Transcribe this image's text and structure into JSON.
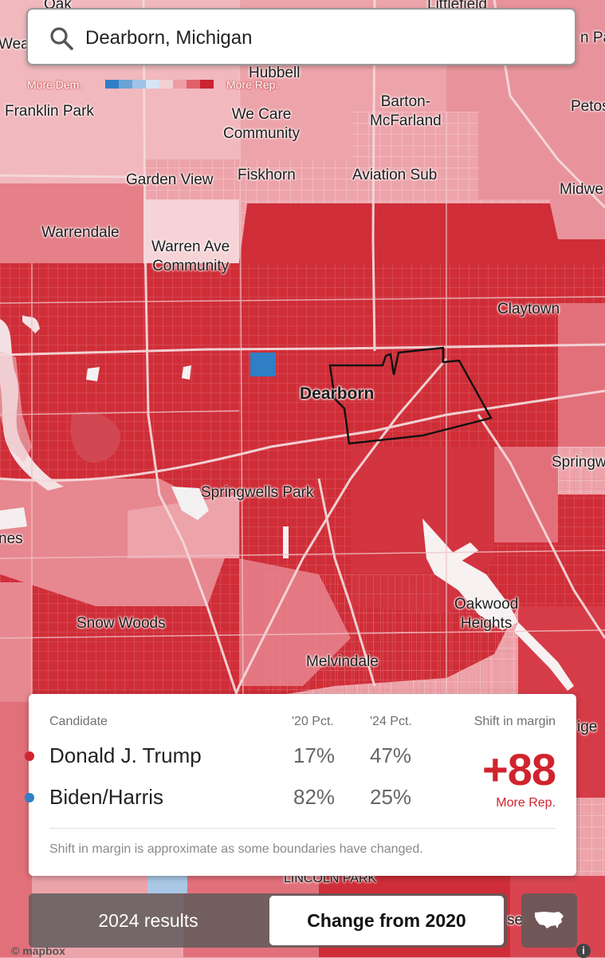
{
  "search": {
    "value": "Dearborn, Michigan",
    "placeholder": ""
  },
  "scale": {
    "left_label": "More Dem.",
    "right_label": "More Rep.",
    "colors": [
      "#2f7fc6",
      "#6aa3d6",
      "#9fc3e6",
      "#d7e5f3",
      "#f3d0d2",
      "#ec9ea4",
      "#e0606a",
      "#c9242f"
    ]
  },
  "map": {
    "colors": {
      "strong_rep": "#cf2e38",
      "mid_rep": "#e2707a",
      "light_rep": "#eda3aa",
      "pale_rep": "#f5cdd0",
      "dem": "#2f7fc6",
      "water": "#f3f3f3"
    },
    "labels": {
      "oak": "Oak",
      "littlefield": "Littlefield",
      "weat": "Weat",
      "hubbell": "Hubbell",
      "right_pa": "n Pa",
      "franklin_park": "Franklin Park",
      "we_care": "We Care\nCommunity",
      "barton": "Barton-\nMcFarland",
      "petos": "Petos",
      "garden_view": "Garden View",
      "fiskhorn": "Fiskhorn",
      "aviation_sub": "Aviation Sub",
      "midwe": "Midwe",
      "warrendale": "Warrendale",
      "warren_ave": "Warren Ave\nCommunity",
      "claytown": "Claytown",
      "dearborn": "Dearborn",
      "springw": "Springw",
      "springwells_park": "Springwells Park",
      "nes": "nes",
      "snow_woods": "Snow Woods",
      "oakwood": "Oakwood\nHeights",
      "melvindale": "Melvindale",
      "ige": "ige",
      "lincoln_park": "LINCOLN PARK",
      "se": "se"
    }
  },
  "panel": {
    "headers": {
      "candidate": "Candidate",
      "pct20": "'20 Pct.",
      "pct24": "'24 Pct.",
      "shift": "Shift in margin"
    },
    "rows": [
      {
        "name": "Donald J. Trump",
        "pct20": "17%",
        "pct24": "47%",
        "color": "#d0232d"
      },
      {
        "name": "Biden/Harris",
        "pct20": "82%",
        "pct24": "25%",
        "color": "#2f7fc6"
      }
    ],
    "shift_value": "+88",
    "shift_label": "More Rep.",
    "note": "Shift in margin is approximate as some boundaries have changed."
  },
  "toggle": {
    "option1": "2024 results",
    "option2": "Change from 2020"
  },
  "attribution": "© mapbox"
}
